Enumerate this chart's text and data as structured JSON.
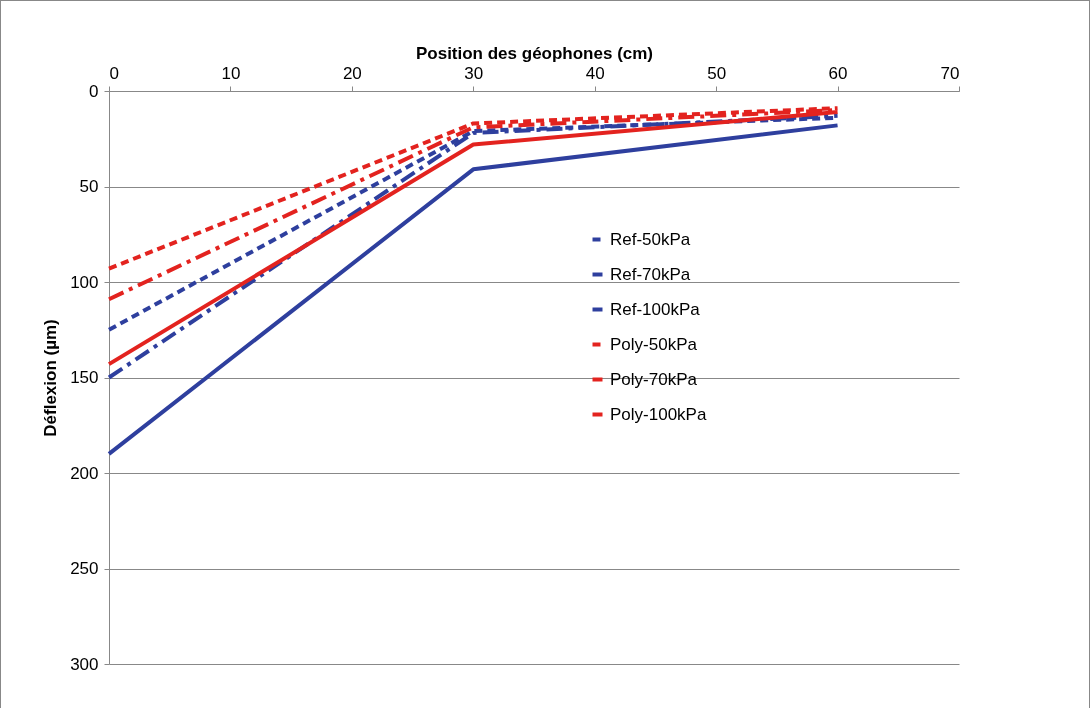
{
  "chart_data": {
    "type": "line",
    "xlabel": "Position des géophones (cm)",
    "ylabel": "Déflexion (µm)",
    "x": [
      0,
      30,
      60
    ],
    "xlim": [
      0,
      70
    ],
    "xticks": [
      0,
      10,
      20,
      30,
      40,
      50,
      60,
      70
    ],
    "ylim": [
      300,
      0
    ],
    "yticks": [
      0,
      50,
      100,
      150,
      200,
      250,
      300
    ],
    "grid": "y",
    "legend": "right",
    "marker": "none",
    "series": [
      {
        "name": "Ref-50kPa",
        "color": "#2e3f9e",
        "line_style": "dotted",
        "values": [
          125,
          21,
          14
        ]
      },
      {
        "name": "Ref-70kPa",
        "color": "#2e3f9e",
        "line_style": "dashed",
        "values": [
          150,
          22,
          13
        ]
      },
      {
        "name": "Ref-100kPa",
        "color": "#2e3f9e",
        "line_style": "solid",
        "values": [
          190,
          41,
          18
        ]
      },
      {
        "name": "Poly-50kPa",
        "color": "#e3231f",
        "line_style": "dotted",
        "values": [
          93,
          17,
          9
        ]
      },
      {
        "name": "Poly-70kPa",
        "color": "#e3231f",
        "line_style": "dashed",
        "values": [
          109,
          19,
          10
        ]
      },
      {
        "name": "Poly-100kPa",
        "color": "#e3231f",
        "line_style": "solid",
        "values": [
          143,
          28,
          11
        ]
      }
    ]
  }
}
